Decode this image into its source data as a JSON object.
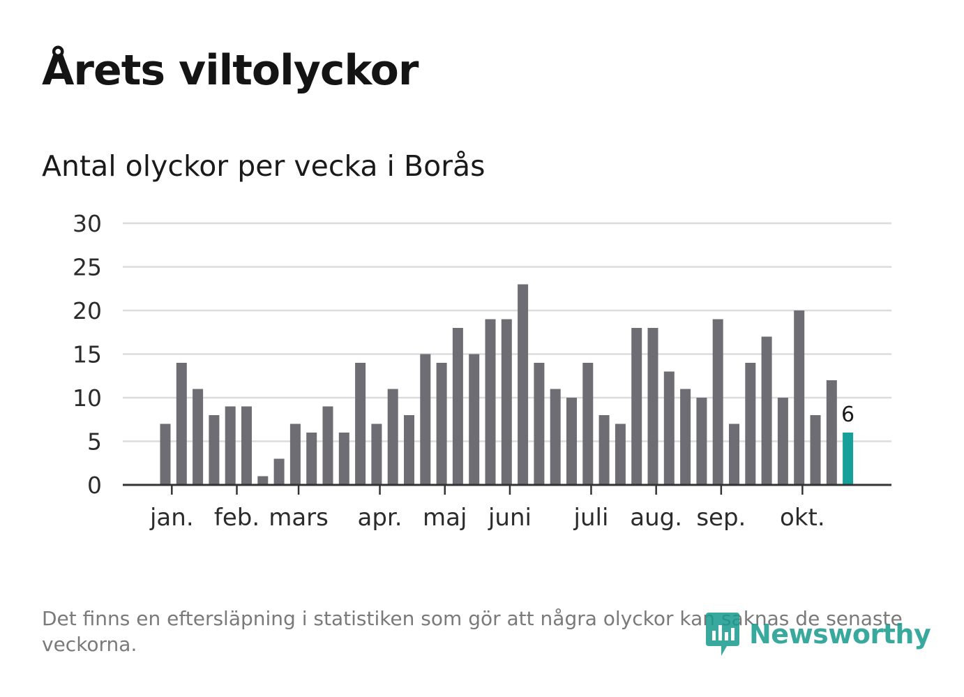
{
  "title": "Årets viltolyckor",
  "subtitle": "Antal olyckor per vecka i Borås",
  "footnote": "Det finns en eftersläpning i statistiken som gör att några olyckor kan saknas de senaste veckorna.",
  "brand": {
    "name": "Newsworthy",
    "color": "#179b8e"
  },
  "colors": {
    "bar": "#6e6d73",
    "highlight": "#16a099",
    "grid": "#dcdcdc",
    "axis": "#333333",
    "label": "#2b2b2b"
  },
  "chart_data": {
    "type": "bar",
    "title": "Antal olyckor per vecka i Borås",
    "xlabel": "",
    "ylabel": "",
    "ylim": [
      0,
      30
    ],
    "yticks": [
      0,
      5,
      10,
      15,
      20,
      25,
      30
    ],
    "grid": true,
    "weeks": [
      1,
      2,
      3,
      4,
      5,
      6,
      7,
      8,
      9,
      10,
      11,
      12,
      13,
      14,
      15,
      16,
      17,
      18,
      19,
      20,
      21,
      22,
      23,
      24,
      25,
      26,
      27,
      28,
      29,
      30,
      31,
      32,
      33,
      34,
      35,
      36,
      37,
      38,
      39,
      40,
      41,
      42,
      43
    ],
    "values": [
      7,
      14,
      11,
      8,
      9,
      9,
      1,
      3,
      7,
      6,
      9,
      6,
      14,
      7,
      11,
      8,
      15,
      14,
      18,
      15,
      19,
      19,
      23,
      14,
      11,
      10,
      14,
      8,
      7,
      18,
      18,
      13,
      11,
      10,
      19,
      7,
      14,
      17,
      10,
      20,
      8,
      12,
      6
    ],
    "highlight_last": true,
    "last_value_label": "6",
    "month_labels": [
      {
        "label": "jan.",
        "week": 1.4
      },
      {
        "label": "feb.",
        "week": 5.4
      },
      {
        "label": "mars",
        "week": 9.2
      },
      {
        "label": "apr.",
        "week": 14.2
      },
      {
        "label": "maj",
        "week": 18.2
      },
      {
        "label": "juni",
        "week": 22.2
      },
      {
        "label": "juli",
        "week": 27.2
      },
      {
        "label": "aug.",
        "week": 31.2
      },
      {
        "label": "sep.",
        "week": 35.2
      },
      {
        "label": "okt.",
        "week": 40.2
      }
    ]
  }
}
